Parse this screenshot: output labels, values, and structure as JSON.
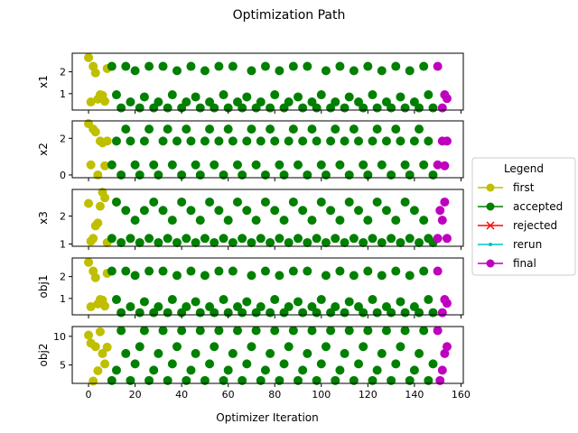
{
  "chart_data": {
    "type": "scatter",
    "title": "Optimization Path",
    "xlabel": "Optimizer Iteration",
    "xlim": [
      -7,
      161
    ],
    "xticks": [
      0,
      20,
      40,
      60,
      80,
      100,
      120,
      140,
      160
    ],
    "legend": {
      "title": "Legend",
      "placement": "right-outside",
      "entries": [
        {
          "label": "first",
          "color": "#bfbf00",
          "marker": "circle"
        },
        {
          "label": "accepted",
          "color": "#008000",
          "marker": "circle"
        },
        {
          "label": "rejected",
          "color": "#ff0000",
          "marker": "x"
        },
        {
          "label": "rerun",
          "color": "#00bfbf",
          "marker": "dot"
        },
        {
          "label": "final",
          "color": "#bf00bf",
          "marker": "circle"
        }
      ]
    },
    "panels": [
      {
        "ylabel": "x1",
        "ylim": [
          0.25,
          2.85
        ],
        "yticks": [
          1,
          2
        ],
        "first": {
          "x": [
            0,
            1,
            2,
            3,
            4,
            5,
            6,
            7,
            8
          ],
          "y": [
            2.65,
            0.62,
            2.25,
            1.95,
            0.75,
            0.95,
            0.92,
            0.65,
            2.15
          ]
        },
        "accepted": {
          "x": [
            10,
            12,
            14,
            16,
            18,
            20,
            22,
            24,
            26,
            28,
            30,
            32,
            34,
            36,
            38,
            40,
            42,
            44,
            46,
            48,
            50,
            52,
            54,
            56,
            58,
            60,
            62,
            64,
            66,
            68,
            70,
            72,
            74,
            76,
            78,
            80,
            82,
            84,
            86,
            88,
            90,
            92,
            94,
            96,
            98,
            100,
            102,
            104,
            106,
            108,
            110,
            112,
            114,
            116,
            118,
            120,
            122,
            124,
            126,
            128,
            130,
            132,
            134,
            136,
            138,
            140,
            142,
            144,
            146,
            148
          ],
          "y": [
            2.25,
            0.95,
            0.35,
            2.25,
            0.62,
            2.05,
            0.35,
            0.85,
            2.25,
            0.35,
            0.62,
            2.25,
            0.35,
            0.95,
            2.05,
            0.35,
            0.62,
            2.25,
            0.85,
            0.35,
            2.05,
            0.62,
            0.35,
            2.25,
            0.95,
            0.35,
            2.25,
            0.62,
            0.35,
            0.85,
            2.05,
            0.35,
            0.62,
            2.25,
            0.35,
            0.95,
            2.05,
            0.35,
            0.62,
            2.25,
            0.85,
            0.35,
            2.25,
            0.62,
            0.35,
            0.95,
            2.05,
            0.35,
            0.62,
            2.25,
            0.35,
            0.85,
            2.05,
            0.62,
            0.35,
            2.25,
            0.95,
            0.35,
            2.05,
            0.62,
            0.35,
            2.25,
            0.85,
            0.35,
            2.05,
            0.62,
            0.35,
            2.25,
            0.95,
            0.35
          ]
        },
        "rejected": {
          "x": [],
          "y": []
        },
        "rerun": {
          "x": [],
          "y": []
        },
        "final": {
          "x": [
            150,
            152,
            153,
            154
          ],
          "y": [
            2.25,
            0.35,
            0.95,
            0.78
          ]
        }
      },
      {
        "ylabel": "x2",
        "ylim": [
          -0.15,
          2.95
        ],
        "yticks": [
          0,
          2
        ],
        "first": {
          "x": [
            0,
            1,
            2,
            3,
            4,
            5,
            6,
            7,
            8
          ],
          "y": [
            2.8,
            0.55,
            2.5,
            2.35,
            0.0,
            1.85,
            1.75,
            0.5,
            1.85
          ]
        },
        "accepted": {
          "x": [
            10,
            12,
            14,
            16,
            18,
            20,
            22,
            24,
            26,
            28,
            30,
            32,
            34,
            36,
            38,
            40,
            42,
            44,
            46,
            48,
            50,
            52,
            54,
            56,
            58,
            60,
            62,
            64,
            66,
            68,
            70,
            72,
            74,
            76,
            78,
            80,
            82,
            84,
            86,
            88,
            90,
            92,
            94,
            96,
            98,
            100,
            102,
            104,
            106,
            108,
            110,
            112,
            114,
            116,
            118,
            120,
            122,
            124,
            126,
            128,
            130,
            132,
            134,
            136,
            138,
            140,
            142,
            144,
            146,
            148
          ],
          "y": [
            0.55,
            1.85,
            0.0,
            2.5,
            1.85,
            0.55,
            0.0,
            1.85,
            2.5,
            0.55,
            0.0,
            1.85,
            2.5,
            0.55,
            1.85,
            0.0,
            2.5,
            1.85,
            0.55,
            0.0,
            1.85,
            2.5,
            0.55,
            1.85,
            0.0,
            2.5,
            1.85,
            0.55,
            0.0,
            1.85,
            2.5,
            0.55,
            1.85,
            0.0,
            2.5,
            1.85,
            0.55,
            0.0,
            1.85,
            2.5,
            0.55,
            1.85,
            0.0,
            2.5,
            1.85,
            0.55,
            0.0,
            1.85,
            2.5,
            0.55,
            1.85,
            0.0,
            2.5,
            1.85,
            0.55,
            0.0,
            1.85,
            2.5,
            0.55,
            1.85,
            0.0,
            2.5,
            1.85,
            0.55,
            0.0,
            1.85,
            2.5,
            0.55,
            1.85,
            0.0
          ]
        },
        "rejected": {
          "x": [],
          "y": []
        },
        "rerun": {
          "x": [],
          "y": []
        },
        "final": {
          "x": [
            150,
            152,
            153,
            154
          ],
          "y": [
            0.55,
            1.85,
            0.5,
            1.85
          ]
        }
      },
      {
        "ylabel": "x3",
        "ylim": [
          0.92,
          2.95
        ],
        "yticks": [
          1,
          2
        ],
        "first": {
          "x": [
            0,
            1,
            2,
            3,
            4,
            5,
            6,
            7,
            8
          ],
          "y": [
            2.45,
            1.1,
            1.2,
            1.65,
            1.75,
            2.35,
            2.85,
            2.65,
            1.05
          ]
        },
        "accepted": {
          "x": [
            10,
            12,
            14,
            16,
            18,
            20,
            22,
            24,
            26,
            28,
            30,
            32,
            34,
            36,
            38,
            40,
            42,
            44,
            46,
            48,
            50,
            52,
            54,
            56,
            58,
            60,
            62,
            64,
            66,
            68,
            70,
            72,
            74,
            76,
            78,
            80,
            82,
            84,
            86,
            88,
            90,
            92,
            94,
            96,
            98,
            100,
            102,
            104,
            106,
            108,
            110,
            112,
            114,
            116,
            118,
            120,
            122,
            124,
            126,
            128,
            130,
            132,
            134,
            136,
            138,
            140,
            142,
            144,
            146,
            148
          ],
          "y": [
            1.2,
            2.5,
            1.05,
            2.2,
            1.2,
            1.85,
            1.05,
            2.2,
            1.2,
            2.5,
            1.05,
            2.2,
            1.2,
            1.85,
            1.05,
            2.5,
            1.2,
            2.2,
            1.05,
            1.85,
            1.2,
            2.5,
            1.05,
            2.2,
            1.2,
            1.85,
            1.05,
            2.5,
            1.2,
            2.2,
            1.05,
            1.85,
            1.2,
            2.5,
            1.05,
            2.2,
            1.2,
            1.85,
            1.05,
            2.5,
            1.2,
            2.2,
            1.05,
            1.85,
            1.2,
            2.5,
            1.05,
            2.2,
            1.2,
            1.85,
            1.05,
            2.5,
            1.2,
            2.2,
            1.05,
            1.85,
            1.2,
            2.5,
            1.05,
            2.2,
            1.2,
            1.85,
            1.05,
            2.5,
            1.2,
            2.2,
            1.05,
            1.85,
            1.2,
            1.05
          ]
        },
        "rejected": {
          "x": [],
          "y": []
        },
        "rerun": {
          "x": [],
          "y": []
        },
        "final": {
          "x": [
            150,
            151,
            152,
            153,
            154
          ],
          "y": [
            1.2,
            2.2,
            1.85,
            2.5,
            1.2
          ]
        }
      },
      {
        "ylabel": "obj1",
        "ylim": [
          0.25,
          2.85
        ],
        "yticks": [
          1,
          2
        ],
        "first": {
          "x": [
            0,
            1,
            2,
            3,
            4,
            5,
            6,
            7,
            8
          ],
          "y": [
            2.65,
            0.62,
            2.25,
            1.95,
            0.75,
            0.95,
            0.92,
            0.65,
            2.15
          ]
        },
        "accepted": {
          "x": [
            10,
            12,
            14,
            16,
            18,
            20,
            22,
            24,
            26,
            28,
            30,
            32,
            34,
            36,
            38,
            40,
            42,
            44,
            46,
            48,
            50,
            52,
            54,
            56,
            58,
            60,
            62,
            64,
            66,
            68,
            70,
            72,
            74,
            76,
            78,
            80,
            82,
            84,
            86,
            88,
            90,
            92,
            94,
            96,
            98,
            100,
            102,
            104,
            106,
            108,
            110,
            112,
            114,
            116,
            118,
            120,
            122,
            124,
            126,
            128,
            130,
            132,
            134,
            136,
            138,
            140,
            142,
            144,
            146,
            148
          ],
          "y": [
            2.25,
            0.95,
            0.35,
            2.25,
            0.62,
            2.05,
            0.35,
            0.85,
            2.25,
            0.35,
            0.62,
            2.25,
            0.35,
            0.95,
            2.05,
            0.35,
            0.62,
            2.25,
            0.85,
            0.35,
            2.05,
            0.62,
            0.35,
            2.25,
            0.95,
            0.35,
            2.25,
            0.62,
            0.35,
            0.85,
            2.05,
            0.35,
            0.62,
            2.25,
            0.35,
            0.95,
            2.05,
            0.35,
            0.62,
            2.25,
            0.85,
            0.35,
            2.25,
            0.62,
            0.35,
            0.95,
            2.05,
            0.35,
            0.62,
            2.25,
            0.35,
            0.85,
            2.05,
            0.62,
            0.35,
            2.25,
            0.95,
            0.35,
            2.05,
            0.62,
            0.35,
            2.25,
            0.85,
            0.35,
            2.05,
            0.62,
            0.35,
            2.25,
            0.95,
            0.35
          ]
        },
        "rejected": {
          "x": [],
          "y": []
        },
        "rerun": {
          "x": [],
          "y": []
        },
        "final": {
          "x": [
            150,
            152,
            153,
            154
          ],
          "y": [
            2.25,
            0.35,
            0.95,
            0.78
          ]
        }
      },
      {
        "ylabel": "obj2",
        "ylim": [
          1.8,
          11.7
        ],
        "yticks": [
          5,
          10
        ],
        "first": {
          "x": [
            0,
            1,
            2,
            3,
            4,
            5,
            6,
            7,
            8
          ],
          "y": [
            10.2,
            8.8,
            2.2,
            8.2,
            4.0,
            10.8,
            7.0,
            5.2,
            8.1
          ]
        },
        "accepted": {
          "x": [
            10,
            12,
            14,
            16,
            18,
            20,
            22,
            24,
            26,
            28,
            30,
            32,
            34,
            36,
            38,
            40,
            42,
            44,
            46,
            48,
            50,
            52,
            54,
            56,
            58,
            60,
            62,
            64,
            66,
            68,
            70,
            72,
            74,
            76,
            78,
            80,
            82,
            84,
            86,
            88,
            90,
            92,
            94,
            96,
            98,
            100,
            102,
            104,
            106,
            108,
            110,
            112,
            114,
            116,
            118,
            120,
            122,
            124,
            126,
            128,
            130,
            132,
            134,
            136,
            138,
            140,
            142,
            144,
            146,
            148
          ],
          "y": [
            2.3,
            4.1,
            11.0,
            7.0,
            2.3,
            5.2,
            8.2,
            11.0,
            2.3,
            4.1,
            7.0,
            11.0,
            2.3,
            5.2,
            8.2,
            11.0,
            2.3,
            4.1,
            7.0,
            11.0,
            2.3,
            5.2,
            8.2,
            11.0,
            2.3,
            4.1,
            7.0,
            11.0,
            2.3,
            5.2,
            8.2,
            11.0,
            2.3,
            4.1,
            7.0,
            11.0,
            2.3,
            5.2,
            8.2,
            11.0,
            2.3,
            4.1,
            7.0,
            11.0,
            2.3,
            5.2,
            8.2,
            11.0,
            2.3,
            4.1,
            7.0,
            11.0,
            2.3,
            5.2,
            8.2,
            11.0,
            2.3,
            4.1,
            7.0,
            11.0,
            2.3,
            5.2,
            8.2,
            11.0,
            2.3,
            4.1,
            7.0,
            11.0,
            2.3,
            5.2
          ]
        },
        "rejected": {
          "x": [],
          "y": []
        },
        "rerun": {
          "x": [],
          "y": []
        },
        "final": {
          "x": [
            150,
            151,
            152,
            153,
            154
          ],
          "y": [
            11.0,
            2.3,
            4.1,
            7.0,
            8.2
          ]
        }
      }
    ]
  }
}
